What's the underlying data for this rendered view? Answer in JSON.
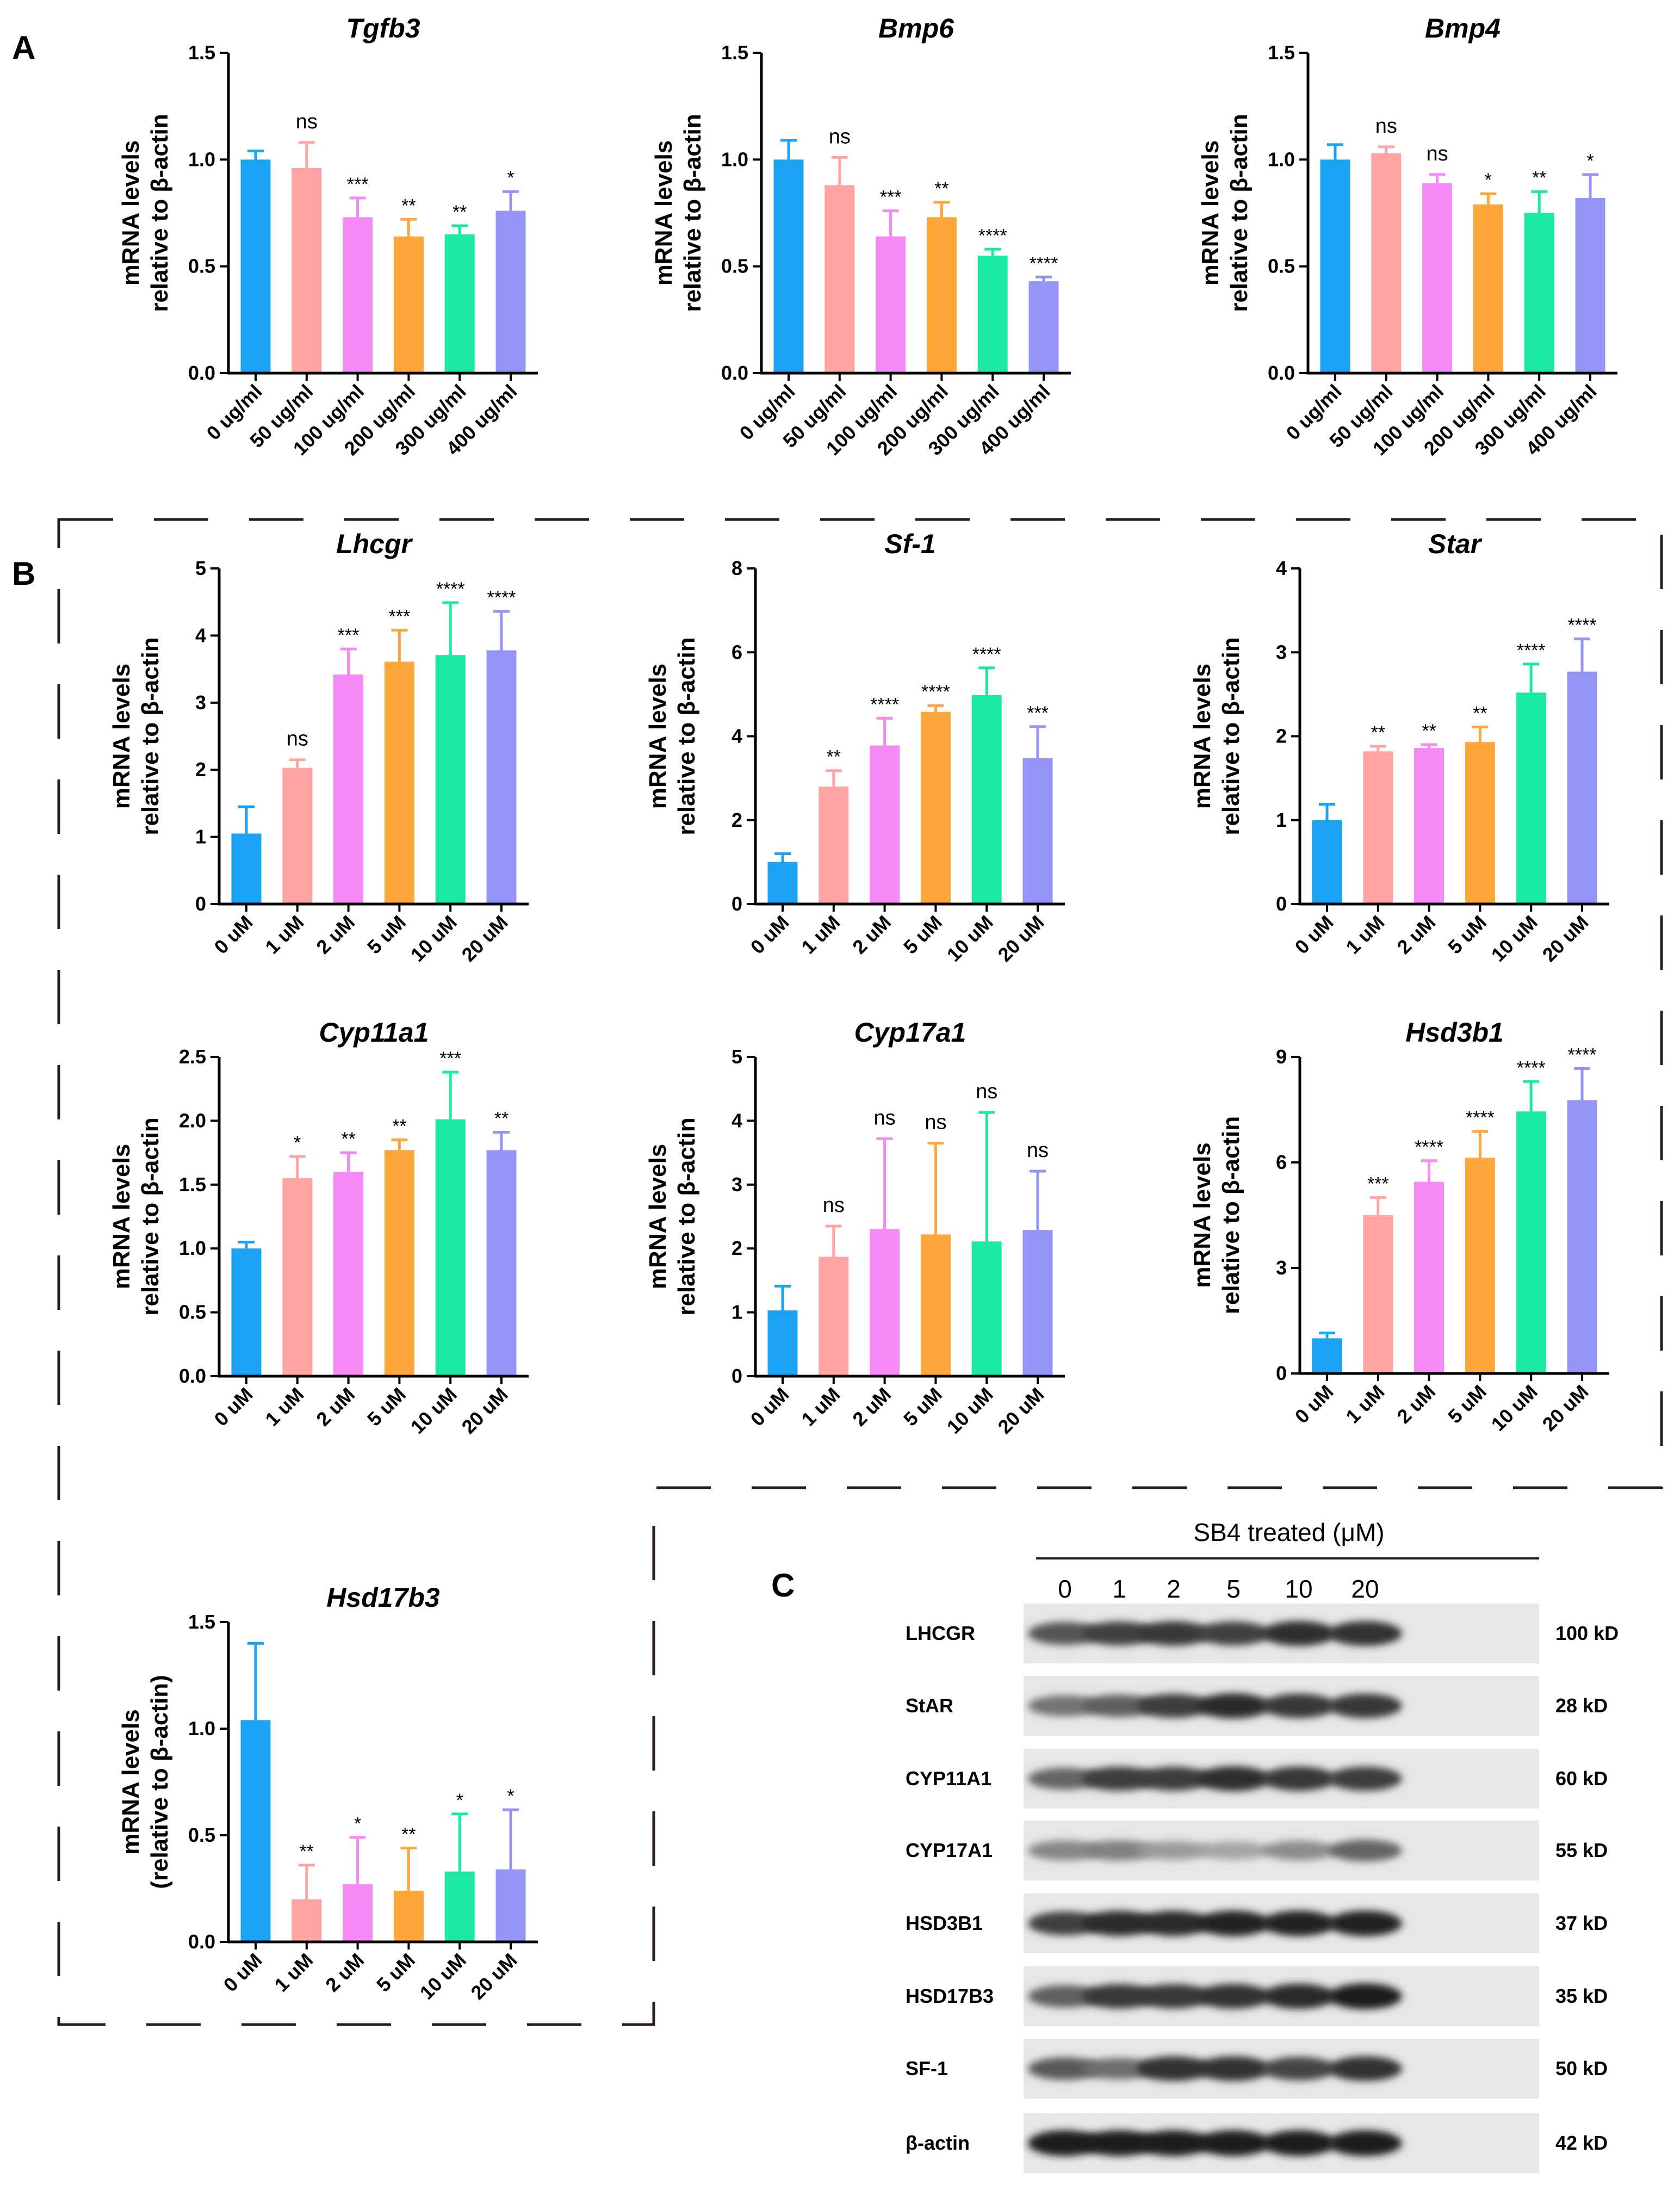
{
  "panel_letters": {
    "a": "A",
    "b": "B",
    "c": "C"
  },
  "colors": {
    "c1": "#1aa3f5",
    "c2": "#ffa3a3",
    "c3": "#f589f5",
    "c4": "#ffa63a",
    "c5": "#1ae8a3",
    "c6": "#9494f7",
    "axis": "#000000",
    "frame": "#2b1a1a"
  },
  "chart_data": [
    {
      "type": "bar",
      "title": "Tgfb3",
      "ylabel": [
        "mRNA levels",
        "relative to β-actin"
      ],
      "categories": [
        "0 ug/ml",
        "50 ug/ml",
        "100 ug/ml",
        "200 ug/ml",
        "300 ug/ml",
        "400 ug/ml"
      ],
      "values": [
        1.0,
        0.96,
        0.73,
        0.64,
        0.65,
        0.76
      ],
      "errors": [
        0.04,
        0.12,
        0.09,
        0.08,
        0.04,
        0.09
      ],
      "significance": [
        "",
        "ns",
        "***",
        "**",
        "**",
        "*"
      ],
      "ylim": [
        0,
        1.5
      ],
      "yticks": [
        "0.0",
        "0.5",
        "1.0",
        "1.5"
      ]
    },
    {
      "type": "bar",
      "title": "Bmp6",
      "ylabel": [
        "mRNA levels",
        "relative to β-actin"
      ],
      "categories": [
        "0 ug/ml",
        "50 ug/ml",
        "100 ug/ml",
        "200 ug/ml",
        "300 ug/ml",
        "400 ug/ml"
      ],
      "values": [
        1.0,
        0.88,
        0.64,
        0.73,
        0.55,
        0.43
      ],
      "errors": [
        0.09,
        0.13,
        0.12,
        0.07,
        0.03,
        0.02
      ],
      "significance": [
        "",
        "ns",
        "***",
        "**",
        "****",
        "****"
      ],
      "ylim": [
        0,
        1.5
      ],
      "yticks": [
        "0.0",
        "0.5",
        "1.0",
        "1.5"
      ]
    },
    {
      "type": "bar",
      "title": "Bmp4",
      "ylabel": [
        "mRNA levels",
        "relative to β-actin"
      ],
      "categories": [
        "0 ug/ml",
        "50 ug/ml",
        "100 ug/ml",
        "200 ug/ml",
        "300 ug/ml",
        "400 ug/ml"
      ],
      "values": [
        1.0,
        1.03,
        0.89,
        0.79,
        0.75,
        0.82
      ],
      "errors": [
        0.07,
        0.03,
        0.04,
        0.05,
        0.1,
        0.11
      ],
      "significance": [
        "",
        "ns",
        "ns",
        "*",
        "**",
        "*"
      ],
      "ylim": [
        0,
        1.5
      ],
      "yticks": [
        "0.0",
        "0.5",
        "1.0",
        "1.5"
      ]
    },
    {
      "type": "bar",
      "title": "Lhcgr",
      "ylabel": [
        "mRNA levels",
        "relative to β-actin"
      ],
      "categories": [
        "0 uM",
        "1 uM",
        "2 uM",
        "5 uM",
        "10 uM",
        "20 uM"
      ],
      "values": [
        1.05,
        2.03,
        3.42,
        3.61,
        3.71,
        3.78
      ],
      "errors": [
        0.4,
        0.12,
        0.38,
        0.47,
        0.78,
        0.58
      ],
      "significance": [
        "",
        "ns",
        "***",
        "***",
        "****",
        "****"
      ],
      "ylim": [
        0,
        5
      ],
      "yticks": [
        "0",
        "1",
        "2",
        "3",
        "4",
        "5"
      ]
    },
    {
      "type": "bar",
      "title": "Sf-1",
      "ylabel": [
        "mRNA levels",
        "relative to β-actin"
      ],
      "categories": [
        "0 uM",
        "1 uM",
        "2 uM",
        "5 uM",
        "10 uM",
        "20 uM"
      ],
      "values": [
        1.0,
        2.8,
        3.78,
        4.58,
        4.98,
        3.48
      ],
      "errors": [
        0.2,
        0.38,
        0.65,
        0.15,
        0.65,
        0.75
      ],
      "significance": [
        "",
        "**",
        "****",
        "****",
        "****",
        "***"
      ],
      "ylim": [
        0,
        8
      ],
      "yticks": [
        "0",
        "2",
        "4",
        "6",
        "8"
      ]
    },
    {
      "type": "bar",
      "title": "Star",
      "ylabel": [
        "mRNA levels",
        "relative to β-actin"
      ],
      "categories": [
        "0 uM",
        "1 uM",
        "2 uM",
        "5 uM",
        "10 uM",
        "20 uM"
      ],
      "values": [
        1.0,
        1.82,
        1.86,
        1.93,
        2.52,
        2.77
      ],
      "errors": [
        0.19,
        0.06,
        0.04,
        0.18,
        0.34,
        0.39
      ],
      "significance": [
        "",
        "**",
        "**",
        "**",
        "****",
        "****"
      ],
      "ylim": [
        0,
        4
      ],
      "yticks": [
        "0",
        "1",
        "2",
        "3",
        "4"
      ]
    },
    {
      "type": "bar",
      "title": "Cyp11a1",
      "ylabel": [
        "mRNA levels",
        "relative to β-actin"
      ],
      "categories": [
        "0 uM",
        "1 uM",
        "2 uM",
        "5 uM",
        "10 uM",
        "20 uM"
      ],
      "values": [
        1.0,
        1.55,
        1.6,
        1.77,
        2.01,
        1.77
      ],
      "errors": [
        0.05,
        0.17,
        0.15,
        0.08,
        0.37,
        0.14
      ],
      "significance": [
        "",
        "*",
        "**",
        "**",
        "***",
        "**"
      ],
      "ylim": [
        0,
        2.5
      ],
      "yticks": [
        "0.0",
        "0.5",
        "1.0",
        "1.5",
        "2.0",
        "2.5"
      ]
    },
    {
      "type": "bar",
      "title": "Cyp17a1",
      "ylabel": [
        "mRNA levels",
        "relative to β-actin"
      ],
      "categories": [
        "0 uM",
        "1 uM",
        "2 uM",
        "5 uM",
        "10 uM",
        "20 uM"
      ],
      "values": [
        1.03,
        1.87,
        2.3,
        2.22,
        2.11,
        2.29
      ],
      "errors": [
        0.38,
        0.48,
        1.42,
        1.43,
        2.02,
        0.92
      ],
      "significance": [
        "",
        "ns",
        "ns",
        "ns",
        "ns",
        "ns"
      ],
      "ylim": [
        0,
        5
      ],
      "yticks": [
        "0",
        "1",
        "2",
        "3",
        "4",
        "5"
      ]
    },
    {
      "type": "bar",
      "title": "Hsd3b1",
      "ylabel": [
        "mRNA levels",
        "relative to β-actin"
      ],
      "categories": [
        "0 uM",
        "1 uM",
        "2 uM",
        "5 uM",
        "10 uM",
        "20 uM"
      ],
      "values": [
        1.0,
        4.5,
        5.45,
        6.13,
        7.45,
        7.77
      ],
      "errors": [
        0.15,
        0.5,
        0.6,
        0.75,
        0.85,
        0.9
      ],
      "significance": [
        "",
        "***",
        "****",
        "****",
        "****",
        "****"
      ],
      "ylim": [
        0,
        9
      ],
      "yticks": [
        "0",
        "3",
        "6",
        "9"
      ]
    },
    {
      "type": "bar",
      "title": "Hsd17b3",
      "ylabel": [
        "mRNA levels",
        "(relative to β-actin)"
      ],
      "categories": [
        "0 uM",
        "1 uM",
        "2 uM",
        "5 uM",
        "10 uM",
        "20 uM"
      ],
      "values": [
        1.04,
        0.2,
        0.27,
        0.24,
        0.33,
        0.34
      ],
      "errors": [
        0.36,
        0.16,
        0.22,
        0.2,
        0.27,
        0.28
      ],
      "significance": [
        "",
        "**",
        "*",
        "**",
        "*",
        "*"
      ],
      "ylim": [
        0,
        1.5
      ],
      "yticks": [
        "0.0",
        "0.5",
        "1.0",
        "1.5"
      ]
    }
  ],
  "western_blot": {
    "header": "SB4 treated  (μM)",
    "lanes": [
      "0",
      "1",
      "2",
      "5",
      "10",
      "20"
    ],
    "rows": [
      {
        "protein": "LHCGR",
        "size": "100 kD",
        "intensity": [
          0.7,
          0.8,
          0.85,
          0.8,
          0.9,
          0.88
        ]
      },
      {
        "protein": "StAR",
        "size": "28 kD",
        "intensity": [
          0.55,
          0.65,
          0.82,
          0.92,
          0.85,
          0.85
        ]
      },
      {
        "protein": "CYP11A1",
        "size": "60 kD",
        "intensity": [
          0.62,
          0.82,
          0.82,
          0.9,
          0.85,
          0.82
        ]
      },
      {
        "protein": "CYP17A1",
        "size": "55 kD",
        "intensity": [
          0.45,
          0.48,
          0.35,
          0.3,
          0.42,
          0.62
        ]
      },
      {
        "protein": "HSD3B1",
        "size": "37 kD",
        "intensity": [
          0.8,
          0.92,
          0.92,
          0.95,
          0.95,
          0.95
        ]
      },
      {
        "protein": "HSD17B3",
        "size": "35 kD",
        "intensity": [
          0.65,
          0.85,
          0.85,
          0.88,
          0.92,
          0.98
        ]
      },
      {
        "protein": "SF-1",
        "size": "50 kD",
        "intensity": [
          0.68,
          0.58,
          0.88,
          0.88,
          0.78,
          0.88
        ]
      },
      {
        "protein": "β-actin",
        "size": "42 kD",
        "intensity": [
          0.97,
          0.97,
          0.97,
          0.97,
          0.97,
          0.97
        ]
      }
    ]
  }
}
